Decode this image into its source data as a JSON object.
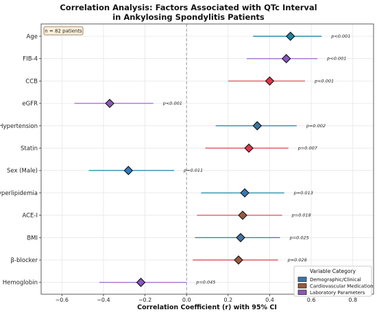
{
  "chart_data": {
    "type": "forest",
    "title_lines": [
      "Correlation Analysis: Factors Associated with QTc Interval",
      "in Ankylosing Spondylitis Patients"
    ],
    "xlabel": "Correlation Coefficient (r) with 95% CI",
    "xlim": [
      -0.7,
      0.9
    ],
    "xticks": [
      -0.6,
      -0.4,
      -0.2,
      0.0,
      0.2,
      0.4,
      0.6,
      0.8
    ],
    "xtick_labels": [
      "−0.6",
      "−0.4",
      "−0.2",
      "0.0",
      "0.2",
      "0.4",
      "0.6",
      "0.8"
    ],
    "reference_line": 0,
    "grid": true,
    "annotation": "n = 82 patients",
    "categories": {
      "Demographic/Clinical": "#2a7f9e",
      "Cardiovascular Medication": "#9b5a3c",
      "Laboratory Parameters": "#8a5ab4"
    },
    "category_colors": {
      "Demographic/Clinical": {
        "marker": "#3a78b0",
        "line": "#2a8fa8"
      },
      "Cardiovascular Medication": {
        "marker": "#e03a4a",
        "line": "#e05a66"
      },
      "Laboratory Parameters": {
        "marker": "#9a5fc8",
        "line": "#a870d0"
      }
    },
    "rows": [
      {
        "label": "Age",
        "r": 0.5,
        "ci": [
          0.32,
          0.65
        ],
        "p": "p<0.001",
        "category": "Demographic/Clinical",
        "marker": "#2a7f9e"
      },
      {
        "label": "FIB-4",
        "r": 0.48,
        "ci": [
          0.29,
          0.63
        ],
        "p": "p<0.001",
        "category": "Laboratory Parameters",
        "marker": "#8a5ab4"
      },
      {
        "label": "CCB",
        "r": 0.4,
        "ci": [
          0.2,
          0.57
        ],
        "p": "p<0.001",
        "category": "Cardiovascular Medication",
        "marker": "#e0344a"
      },
      {
        "label": "eGFR",
        "r": -0.37,
        "ci": [
          -0.54,
          -0.16
        ],
        "p": "p<0.001",
        "category": "Laboratory Parameters",
        "marker": "#8a5ab4"
      },
      {
        "label": "Hypertension",
        "r": 0.34,
        "ci": [
          0.14,
          0.53
        ],
        "p": "p=0.002",
        "category": "Demographic/Clinical",
        "marker": "#2a7f9e"
      },
      {
        "label": "Statin",
        "r": 0.3,
        "ci": [
          0.09,
          0.49
        ],
        "p": "p=0.007",
        "category": "Cardiovascular Medication",
        "marker": "#e0344a"
      },
      {
        "label": "Sex (Male)",
        "r": -0.28,
        "ci": [
          -0.47,
          -0.06
        ],
        "p": "p=0.011",
        "category": "Demographic/Clinical",
        "marker": "#3a78b0"
      },
      {
        "label": "Hyperlipidemia",
        "r": 0.28,
        "ci": [
          0.07,
          0.47
        ],
        "p": "p=0.013",
        "category": "Demographic/Clinical",
        "marker": "#3a78b0"
      },
      {
        "label": "ACE-I",
        "r": 0.27,
        "ci": [
          0.05,
          0.46
        ],
        "p": "p=0.018",
        "category": "Cardiovascular Medication",
        "marker": "#9b5a3c"
      },
      {
        "label": "BMI",
        "r": 0.26,
        "ci": [
          0.04,
          0.45
        ],
        "p": "p=0.025",
        "category": "Demographic/Clinical",
        "marker": "#3a78b0"
      },
      {
        "label": "β-blocker",
        "r": 0.25,
        "ci": [
          0.03,
          0.44
        ],
        "p": "p=0.028",
        "category": "Cardiovascular Medication",
        "marker": "#9b5a3c"
      },
      {
        "label": "Hemoglobin",
        "r": -0.22,
        "ci": [
          -0.42,
          0.0
        ],
        "p": "p=0.045",
        "category": "Laboratory Parameters",
        "marker": "#8a5ab4"
      }
    ],
    "legend": {
      "title": "Variable Category",
      "position": "bottom-right",
      "items": [
        {
          "label": "Demographic/Clinical",
          "color": "#3a78b0"
        },
        {
          "label": "Cardiovascular Medication",
          "color": "#9b5a3c"
        },
        {
          "label": "Laboratory Parameters",
          "color": "#8a5ab4"
        }
      ]
    }
  }
}
